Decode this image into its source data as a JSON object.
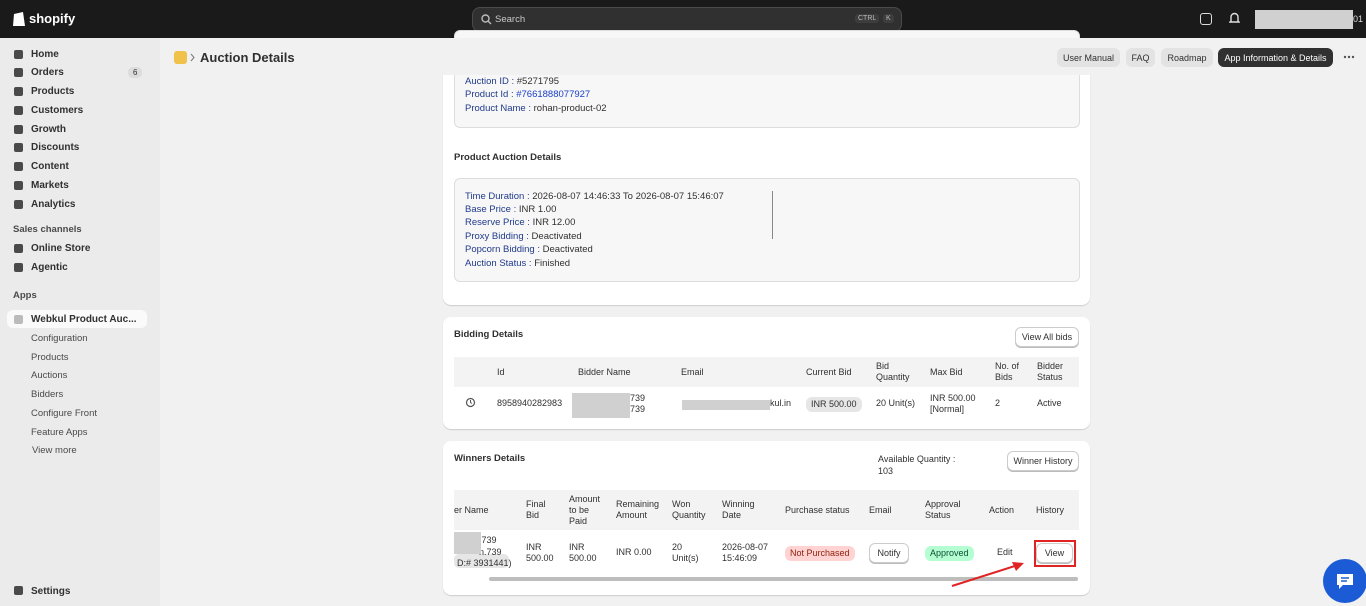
{
  "topbar": {
    "logo": "shopify",
    "search": "Search",
    "shortcut": [
      "CTRL",
      "K"
    ],
    "account": "01"
  },
  "sidebar": {
    "nav": [
      "Home",
      "Orders",
      "Products",
      "Customers",
      "Growth",
      "Discounts",
      "Content",
      "Markets",
      "Analytics"
    ],
    "orders_badge": "6",
    "sales_channels": "Sales channels",
    "channels": [
      "Online Store",
      "Agentic"
    ],
    "apps": "Apps",
    "app_name": "Webkul Product Auc...",
    "app_links": [
      "Configuration",
      "Products",
      "Auctions",
      "Bidders",
      "Configure Front",
      "Feature Apps",
      "View more"
    ],
    "settings": "Settings"
  },
  "header": {
    "title": "Auction Details",
    "buttons": [
      "User Manual",
      "FAQ",
      "Roadmap",
      "App Information & Details"
    ]
  },
  "auction_info": [
    {
      "label": "Auction ID :",
      "value": "#5271795"
    },
    {
      "label": "Product Id :",
      "value": "#7661888077927"
    },
    {
      "label": "Product Name :",
      "value": "rohan-product-02"
    }
  ],
  "product_auction": {
    "title": "Product Auction Details",
    "fields": [
      {
        "label": "Time Duration :",
        "value": "2026-08-07 14:46:33 To 2026-08-07 15:46:07"
      },
      {
        "label": "Base Price :",
        "value": "INR 1.00"
      },
      {
        "label": "Reserve Price :",
        "value": "INR 12.00"
      },
      {
        "label": "Proxy Bidding :",
        "value": "Deactivated"
      },
      {
        "label": "Popcorn Bidding :",
        "value": "Deactivated"
      },
      {
        "label": "Auction Status :",
        "value": "Finished"
      }
    ]
  },
  "bidding": {
    "title": "Bidding Details",
    "button": "View All bids",
    "columns": [
      "Id",
      "Bidder Name",
      "Email",
      "Current Bid",
      "Bid Quantity",
      "Max Bid",
      "No. of Bids",
      "Bidder Status"
    ],
    "row": {
      "id": "8958940282983",
      "name": [
        "739",
        "739"
      ],
      "email": "kul.in",
      "current_bid": "INR 500.00",
      "quantity": "20 Unit(s)",
      "max_bid": "INR 500.00 [Normal]",
      "bids": "2",
      "status": "Active"
    }
  },
  "winners": {
    "title": "Winners Details",
    "available_label": "Available Quantity :",
    "available_value": "103",
    "button": "Winner History",
    "columns": [
      "er Name",
      "Final Bid",
      "Amount to be Paid",
      "Remaining Amount",
      "Won Quantity",
      "Winning Date",
      "Purchase status",
      "Email",
      "Approval Status",
      "Action",
      "History"
    ],
    "row": {
      "name": [
        ".739",
        "n.739",
        "D:# 3931441)"
      ],
      "final_bid": "INR 500.00",
      "amount": "INR 500.00",
      "remaining": "INR 0.00",
      "won": "20 Unit(s)",
      "date": "2026-08-07 15:46:09",
      "purchase": "Not Purchased",
      "email": "Notify",
      "approval": "Approved",
      "action": "Edit",
      "history": "View"
    }
  }
}
